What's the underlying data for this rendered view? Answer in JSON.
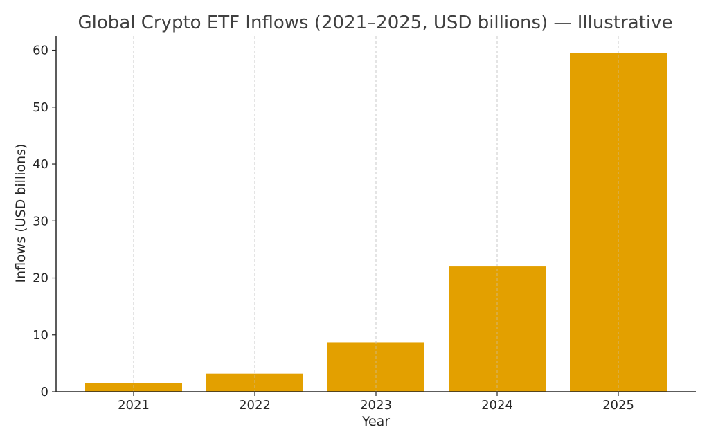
{
  "chart_data": {
    "type": "bar",
    "title": "Global Crypto ETF Inflows (2021–2025, USD billions) — Illustrative",
    "xlabel": "Year",
    "ylabel": "Inflows (USD billions)",
    "categories": [
      "2021",
      "2022",
      "2023",
      "2024",
      "2025"
    ],
    "values": [
      1.5,
      3.2,
      8.7,
      22.0,
      59.5
    ],
    "ylim": [
      0,
      62.5
    ],
    "yticks": [
      0,
      10,
      20,
      30,
      40,
      50,
      60
    ],
    "grid": "vertical dashed",
    "bar_color": "#E3A000"
  }
}
